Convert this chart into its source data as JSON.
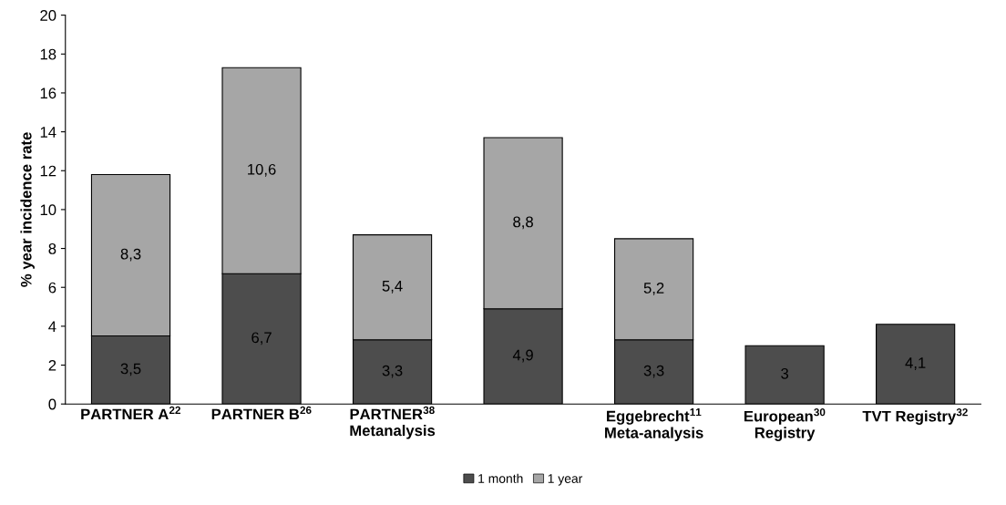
{
  "chart_data": {
    "type": "bar",
    "stacked": true,
    "ylabel": "% year incidence rate",
    "categories": [
      "PARTNER A$^{22}$",
      "PARTNER B$^{26}$",
      "PARTNER$^{38}$\nMetanalysis",
      null,
      "Eggebrecht$^{11}$\nMeta-analysis",
      "European$^{30}$\nRegistry",
      "TVT Registry$^{32}$"
    ],
    "series": [
      {
        "name": "1 month",
        "color": "#4d4d4d",
        "values": [
          3.5,
          6.7,
          3.3,
          4.9,
          3.3,
          3,
          4.1
        ],
        "value_labels": [
          "3,5",
          "6,7",
          "3,3",
          "4,9",
          "3,3",
          "3",
          "4,1"
        ]
      },
      {
        "name": "1 year",
        "color": "#a6a6a6",
        "values": [
          8.3,
          10.6,
          5.4,
          8.8,
          5.2,
          null,
          null
        ],
        "value_labels": [
          "8,3",
          "10,6",
          "5,4",
          "8,8",
          "5,2",
          null,
          null
        ]
      }
    ],
    "ylim": [
      0,
      20
    ],
    "yticks": [
      0,
      2,
      4,
      6,
      8,
      10,
      12,
      14,
      16,
      18,
      20
    ],
    "grid": false,
    "legend": "bottom"
  }
}
